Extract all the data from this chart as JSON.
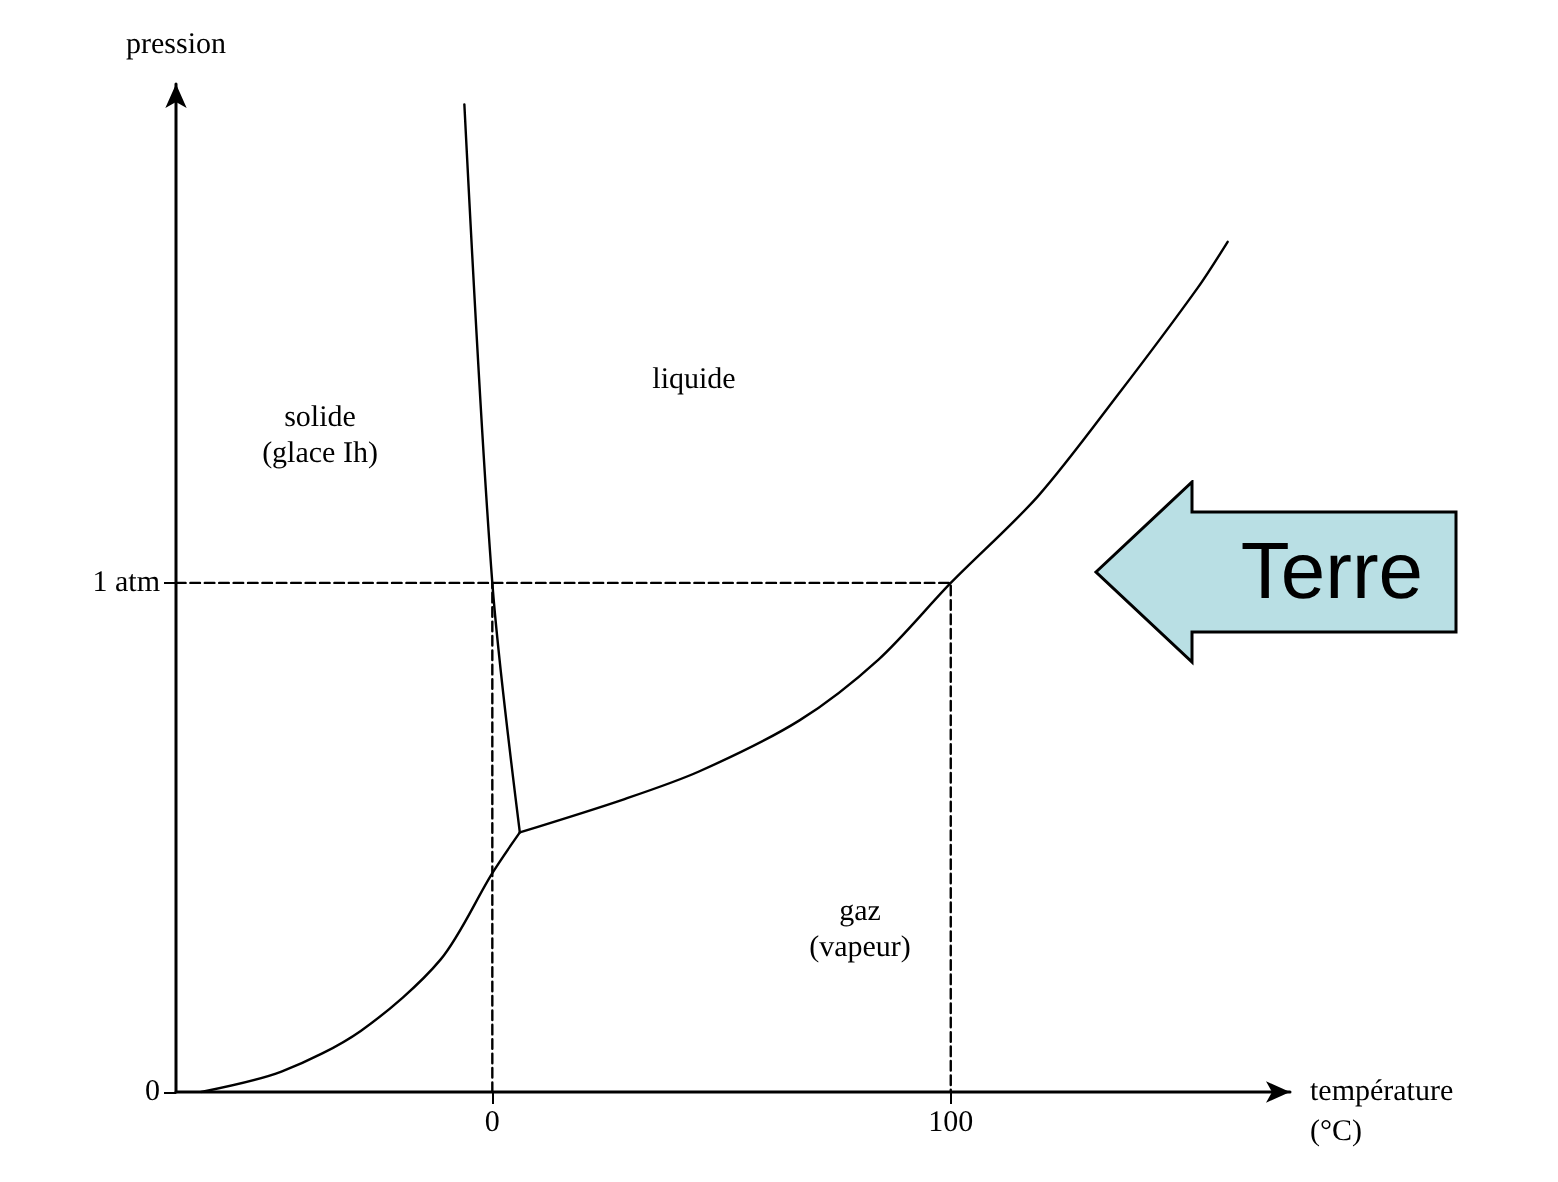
{
  "chart_data": {
    "type": "line",
    "xlabel": "température\n(°C)",
    "ylabel": "pression",
    "xlim": [
      -69,
      174
    ],
    "ylim": [
      0,
      1.98
    ],
    "xticks": [
      0,
      100
    ],
    "yticks": [
      0,
      {
        "value": 1,
        "label": "1 atm"
      }
    ],
    "marker": "none",
    "series": [
      {
        "color": "#000000",
        "x": [
          -63.5,
          -46,
          -28.7,
          -11.3,
          0,
          6
        ],
        "values": [
          0,
          0.04,
          0.12,
          0.26,
          0.43,
          0.51
        ]
      },
      {
        "color": "#000000",
        "x": [
          6,
          0,
          -6.1
        ],
        "values": [
          0.51,
          1,
          1.94
        ]
      },
      {
        "color": "#000000",
        "x": [
          6,
          28.7,
          45.2,
          67,
          84.3,
          100,
          119,
          136.5,
          153.9,
          160.4
        ],
        "values": [
          0.51,
          0.575,
          0.63,
          0.73,
          0.85,
          1,
          1.17,
          1.37,
          1.58,
          1.67
        ]
      },
      {
        "color": "#000000",
        "line_style": "dashed",
        "x": [
          -69,
          100,
          100
        ],
        "values": [
          1,
          1,
          0
        ]
      },
      {
        "color": "#000000",
        "line_style": "dashed",
        "x": [
          0,
          0
        ],
        "values": [
          0,
          1
        ]
      }
    ],
    "annotations": [
      "solide\n(glace Ih)",
      "liquide",
      "gaz\n(vapeur)",
      "Terre"
    ]
  }
}
